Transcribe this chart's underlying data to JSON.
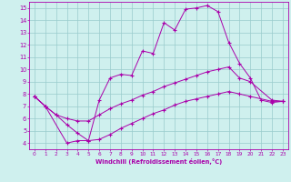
{
  "title": "",
  "xlabel": "Windchill (Refroidissement éolien,°C)",
  "bg_color": "#cff0ee",
  "line_color": "#aa00aa",
  "grid_color": "#99cccc",
  "xlim": [
    -0.5,
    23.5
  ],
  "ylim": [
    3.5,
    15.5
  ],
  "yticks": [
    4,
    5,
    6,
    7,
    8,
    9,
    10,
    11,
    12,
    13,
    14,
    15
  ],
  "xticks": [
    0,
    1,
    2,
    3,
    4,
    5,
    6,
    7,
    8,
    9,
    10,
    11,
    12,
    13,
    14,
    15,
    16,
    17,
    18,
    19,
    20,
    21,
    22,
    23
  ],
  "line1_x": [
    0,
    1,
    3,
    4,
    5,
    6,
    7,
    8,
    9,
    10,
    11,
    12,
    13,
    14,
    15,
    16,
    17,
    18,
    19,
    20,
    21,
    22,
    23
  ],
  "line1_y": [
    7.8,
    7.0,
    4.0,
    4.2,
    4.2,
    7.5,
    9.3,
    9.6,
    9.5,
    11.5,
    11.3,
    13.8,
    13.2,
    14.9,
    15.0,
    15.2,
    14.7,
    12.2,
    10.5,
    9.3,
    7.5,
    7.3,
    7.4
  ],
  "line2_x": [
    0,
    1,
    2,
    3,
    4,
    5,
    6,
    7,
    8,
    9,
    10,
    11,
    12,
    13,
    14,
    15,
    16,
    17,
    18,
    19,
    20,
    22,
    23
  ],
  "line2_y": [
    7.8,
    7.0,
    6.3,
    6.0,
    5.8,
    5.8,
    6.3,
    6.8,
    7.2,
    7.5,
    7.9,
    8.2,
    8.6,
    8.9,
    9.2,
    9.5,
    9.8,
    10.0,
    10.2,
    9.3,
    9.0,
    7.5,
    7.4
  ],
  "line3_x": [
    0,
    1,
    2,
    3,
    4,
    5,
    6,
    7,
    8,
    9,
    10,
    11,
    12,
    13,
    14,
    15,
    16,
    17,
    18,
    19,
    20,
    22,
    23
  ],
  "line3_y": [
    7.8,
    7.0,
    6.3,
    5.5,
    4.8,
    4.2,
    4.3,
    4.7,
    5.2,
    5.6,
    6.0,
    6.4,
    6.7,
    7.1,
    7.4,
    7.6,
    7.8,
    8.0,
    8.2,
    8.0,
    7.8,
    7.4,
    7.4
  ]
}
